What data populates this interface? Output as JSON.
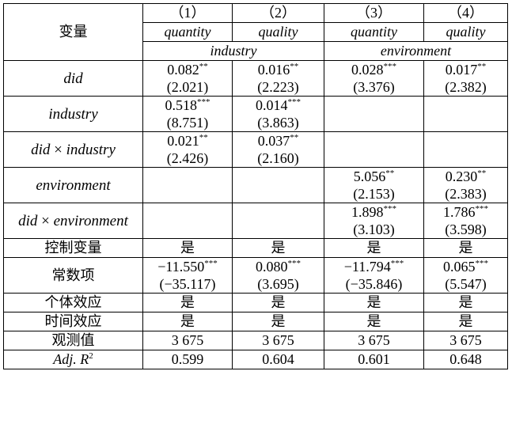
{
  "table": {
    "corner_label": "变量",
    "col_numbers": [
      "（1）",
      "（2）",
      "（3）",
      "（4）"
    ],
    "col_depvars": [
      "quantity",
      "quality",
      "quantity",
      "quality"
    ],
    "groups": [
      "industry",
      "environment"
    ],
    "rows": [
      {
        "label": "did",
        "cells": [
          {
            "coef": "0.082",
            "stars": "**",
            "t": "(2.021)"
          },
          {
            "coef": "0.016",
            "stars": "**",
            "t": "(2.223)"
          },
          {
            "coef": "0.028",
            "stars": "***",
            "t": "(3.376)"
          },
          {
            "coef": "0.017",
            "stars": "**",
            "t": "(2.382)"
          }
        ]
      },
      {
        "label": "industry",
        "cells": [
          {
            "coef": "0.518",
            "stars": "***",
            "t": "(8.751)"
          },
          {
            "coef": "0.014",
            "stars": "***",
            "t": "(3.863)"
          },
          {
            "coef": "",
            "stars": "",
            "t": ""
          },
          {
            "coef": "",
            "stars": "",
            "t": ""
          }
        ]
      },
      {
        "label_a": "did",
        "label_times": "×",
        "label_b": "industry",
        "cells": [
          {
            "coef": "0.021",
            "stars": "**",
            "t": "(2.426)"
          },
          {
            "coef": "0.037",
            "stars": "**",
            "t": "(2.160)"
          },
          {
            "coef": "",
            "stars": "",
            "t": ""
          },
          {
            "coef": "",
            "stars": "",
            "t": ""
          }
        ]
      },
      {
        "label": "environment",
        "cells": [
          {
            "coef": "",
            "stars": "",
            "t": ""
          },
          {
            "coef": "",
            "stars": "",
            "t": ""
          },
          {
            "coef": "5.056",
            "stars": "**",
            "t": "(2.153)"
          },
          {
            "coef": "0.230",
            "stars": "**",
            "t": "(2.383)"
          }
        ]
      },
      {
        "label_a": "did",
        "label_times": "×",
        "label_b": "environment",
        "cells": [
          {
            "coef": "",
            "stars": "",
            "t": ""
          },
          {
            "coef": "",
            "stars": "",
            "t": ""
          },
          {
            "coef": "1.898",
            "stars": "***",
            "t": "(3.103)"
          },
          {
            "coef": "1.786",
            "stars": "***",
            "t": "(3.598)"
          }
        ]
      }
    ],
    "controls": {
      "label": "控制变量",
      "values": [
        "是",
        "是",
        "是",
        "是"
      ]
    },
    "constant": {
      "label": "常数项",
      "cells": [
        {
          "coef": "−11.550",
          "stars": "***",
          "t": "(−35.117)"
        },
        {
          "coef": "0.080",
          "stars": "***",
          "t": "(3.695)"
        },
        {
          "coef": "−11.794",
          "stars": "***",
          "t": "(−35.846)"
        },
        {
          "coef": "0.065",
          "stars": "***",
          "t": "(5.547)"
        }
      ]
    },
    "individual_fe": {
      "label": "个体效应",
      "values": [
        "是",
        "是",
        "是",
        "是"
      ]
    },
    "time_fe": {
      "label": "时间效应",
      "values": [
        "是",
        "是",
        "是",
        "是"
      ]
    },
    "obs": {
      "label": "观测值",
      "values": [
        "3 675",
        "3 675",
        "3 675",
        "3 675"
      ]
    },
    "adj_r2": {
      "label": "Adj. R",
      "sup": "2",
      "values": [
        "0.599",
        "0.604",
        "0.601",
        "0.648"
      ]
    }
  }
}
